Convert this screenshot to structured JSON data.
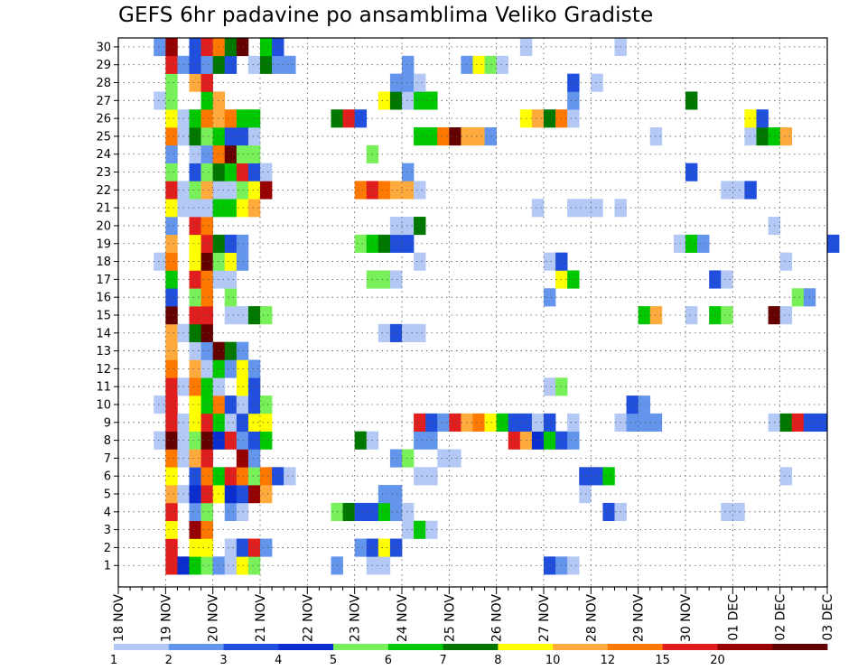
{
  "chart_data": {
    "type": "heatmap",
    "title": "GEFS 6hr padavine po ansamblima Veliko Gradiste",
    "xlabel": "",
    "ylabel": "",
    "grid": true,
    "y_ticks": [
      "1",
      "2",
      "3",
      "4",
      "5",
      "6",
      "7",
      "8",
      "9",
      "10",
      "11",
      "12",
      "13",
      "14",
      "15",
      "16",
      "17",
      "18",
      "19",
      "20",
      "21",
      "22",
      "23",
      "24",
      "25",
      "26",
      "27",
      "28",
      "29",
      "30"
    ],
    "x_ticks": [
      "18 NOV",
      "19 NOV",
      "20 NOV",
      "21 NOV",
      "22 NOV",
      "23 NOV",
      "24 NOV",
      "25 NOV",
      "26 NOV",
      "27 NOV",
      "28 NOV",
      "29 NOV",
      "30 NOV",
      "01 DEC",
      "02 DEC",
      "03 DEC"
    ],
    "x_steps_per_day": 4,
    "x_step_hours": 6,
    "legend": {
      "placement": "bottom",
      "thresholds": [
        "1",
        "2",
        "3",
        "4",
        "5",
        "6",
        "7",
        "8",
        "10",
        "12",
        "15",
        "20"
      ],
      "colors": [
        "#b4c8f5",
        "#6495ed",
        "#1f4fdc",
        "#0a2dd0",
        "#78f05a",
        "#00c800",
        "#007800",
        "#ffff00",
        "#ffaa3c",
        "#ff7800",
        "#e11e1e",
        "#960000",
        "#640000"
      ]
    },
    "levels_note_codes": "cell value = color class 1..13",
    "rows": {
      "1": [
        [
          4,
          11
        ],
        [
          5,
          4
        ],
        [
          6,
          6
        ],
        [
          7,
          5
        ],
        [
          8,
          2
        ],
        [
          9,
          1
        ],
        [
          10,
          8
        ],
        [
          11,
          5
        ],
        [
          18,
          2
        ],
        [
          21,
          1
        ],
        [
          22,
          1
        ],
        [
          36,
          3
        ],
        [
          37,
          2
        ],
        [
          38,
          1
        ]
      ],
      "2": [
        [
          4,
          11
        ],
        [
          6,
          8
        ],
        [
          7,
          8
        ],
        [
          9,
          1
        ],
        [
          10,
          3
        ],
        [
          11,
          11
        ],
        [
          12,
          2
        ],
        [
          20,
          2
        ],
        [
          21,
          3
        ],
        [
          22,
          8
        ],
        [
          23,
          3
        ]
      ],
      "3": [
        [
          4,
          8
        ],
        [
          6,
          12
        ],
        [
          7,
          10
        ],
        [
          24,
          1
        ],
        [
          25,
          6
        ],
        [
          26,
          1
        ]
      ],
      "4": [
        [
          4,
          11
        ],
        [
          6,
          2
        ],
        [
          7,
          5
        ],
        [
          9,
          2
        ],
        [
          10,
          1
        ],
        [
          18,
          5
        ],
        [
          19,
          7
        ],
        [
          20,
          3
        ],
        [
          21,
          3
        ],
        [
          22,
          6
        ],
        [
          23,
          2
        ],
        [
          24,
          1
        ],
        [
          41,
          3
        ],
        [
          42,
          1
        ],
        [
          51,
          1
        ],
        [
          52,
          1
        ]
      ],
      "5": [
        [
          4,
          9
        ],
        [
          5,
          1
        ],
        [
          6,
          4
        ],
        [
          7,
          11
        ],
        [
          8,
          8
        ],
        [
          9,
          4
        ],
        [
          10,
          3
        ],
        [
          11,
          12
        ],
        [
          12,
          9
        ],
        [
          22,
          2
        ],
        [
          23,
          2
        ],
        [
          39,
          1
        ]
      ],
      "6": [
        [
          4,
          8
        ],
        [
          6,
          3
        ],
        [
          7,
          10
        ],
        [
          8,
          6
        ],
        [
          9,
          11
        ],
        [
          10,
          10
        ],
        [
          11,
          5
        ],
        [
          12,
          10
        ],
        [
          13,
          3
        ],
        [
          14,
          1
        ],
        [
          25,
          1
        ],
        [
          26,
          1
        ],
        [
          39,
          3
        ],
        [
          40,
          3
        ],
        [
          41,
          6
        ],
        [
          56,
          1
        ]
      ],
      "7": [
        [
          4,
          10
        ],
        [
          5,
          1
        ],
        [
          6,
          9
        ],
        [
          7,
          11
        ],
        [
          10,
          12
        ],
        [
          11,
          2
        ],
        [
          23,
          2
        ],
        [
          24,
          5
        ],
        [
          27,
          1
        ],
        [
          28,
          1
        ]
      ],
      "8": [
        [
          3,
          1
        ],
        [
          4,
          13
        ],
        [
          5,
          1
        ],
        [
          6,
          5
        ],
        [
          7,
          13
        ],
        [
          8,
          4
        ],
        [
          9,
          11
        ],
        [
          10,
          2
        ],
        [
          11,
          3
        ],
        [
          12,
          6
        ],
        [
          20,
          7
        ],
        [
          21,
          1
        ],
        [
          25,
          2
        ],
        [
          26,
          2
        ],
        [
          33,
          11
        ],
        [
          34,
          9
        ],
        [
          35,
          4
        ],
        [
          36,
          6
        ],
        [
          37,
          3
        ],
        [
          38,
          2
        ]
      ],
      "9": [
        [
          4,
          11
        ],
        [
          5,
          1
        ],
        [
          6,
          8
        ],
        [
          7,
          11
        ],
        [
          8,
          6
        ],
        [
          9,
          1
        ],
        [
          10,
          3
        ],
        [
          11,
          8
        ],
        [
          12,
          8
        ],
        [
          25,
          11
        ],
        [
          26,
          3
        ],
        [
          27,
          2
        ],
        [
          28,
          11
        ],
        [
          29,
          9
        ],
        [
          30,
          10
        ],
        [
          31,
          8
        ],
        [
          32,
          6
        ],
        [
          33,
          3
        ],
        [
          34,
          3
        ],
        [
          35,
          1
        ],
        [
          36,
          3
        ],
        [
          38,
          1
        ],
        [
          42,
          1
        ],
        [
          43,
          2
        ],
        [
          44,
          2
        ],
        [
          45,
          2
        ],
        [
          55,
          1
        ],
        [
          56,
          7
        ],
        [
          57,
          11
        ],
        [
          58,
          3
        ],
        [
          59,
          3
        ]
      ],
      "10": [
        [
          3,
          1
        ],
        [
          4,
          11
        ],
        [
          6,
          8
        ],
        [
          7,
          6
        ],
        [
          8,
          10
        ],
        [
          9,
          3
        ],
        [
          10,
          1
        ],
        [
          11,
          3
        ],
        [
          12,
          5
        ],
        [
          43,
          3
        ],
        [
          44,
          2
        ]
      ],
      "11": [
        [
          4,
          11
        ],
        [
          5,
          1
        ],
        [
          6,
          10
        ],
        [
          7,
          6
        ],
        [
          8,
          1
        ],
        [
          10,
          8
        ],
        [
          11,
          3
        ],
        [
          36,
          1
        ],
        [
          37,
          5
        ]
      ],
      "12": [
        [
          4,
          10
        ],
        [
          6,
          9
        ],
        [
          7,
          1
        ],
        [
          8,
          6
        ],
        [
          9,
          2
        ],
        [
          10,
          8
        ],
        [
          11,
          2
        ]
      ],
      "13": [
        [
          4,
          9
        ],
        [
          6,
          1
        ],
        [
          7,
          2
        ],
        [
          8,
          13
        ],
        [
          9,
          7
        ],
        [
          10,
          2
        ]
      ],
      "14": [
        [
          4,
          9
        ],
        [
          5,
          1
        ],
        [
          6,
          7
        ],
        [
          7,
          13
        ],
        [
          22,
          1
        ],
        [
          23,
          3
        ],
        [
          24,
          1
        ],
        [
          25,
          1
        ]
      ],
      "15": [
        [
          4,
          13
        ],
        [
          6,
          11
        ],
        [
          7,
          11
        ],
        [
          9,
          1
        ],
        [
          10,
          1
        ],
        [
          11,
          7
        ],
        [
          12,
          5
        ],
        [
          44,
          6
        ],
        [
          45,
          9
        ],
        [
          48,
          1
        ],
        [
          50,
          6
        ],
        [
          51,
          5
        ],
        [
          55,
          13
        ],
        [
          56,
          1
        ]
      ],
      "16": [
        [
          4,
          3
        ],
        [
          6,
          5
        ],
        [
          7,
          10
        ],
        [
          9,
          5
        ],
        [
          36,
          2
        ],
        [
          57,
          5
        ],
        [
          58,
          2
        ]
      ],
      "17": [
        [
          4,
          6
        ],
        [
          6,
          11
        ],
        [
          7,
          10
        ],
        [
          8,
          1
        ],
        [
          9,
          1
        ],
        [
          21,
          5
        ],
        [
          22,
          5
        ],
        [
          23,
          1
        ],
        [
          37,
          8
        ],
        [
          38,
          6
        ],
        [
          50,
          3
        ],
        [
          51,
          1
        ]
      ],
      "18": [
        [
          3,
          1
        ],
        [
          4,
          10
        ],
        [
          6,
          8
        ],
        [
          7,
          13
        ],
        [
          8,
          5
        ],
        [
          9,
          8
        ],
        [
          10,
          2
        ],
        [
          25,
          1
        ],
        [
          36,
          1
        ],
        [
          37,
          3
        ],
        [
          56,
          1
        ]
      ],
      "19": [
        [
          4,
          9
        ],
        [
          6,
          8
        ],
        [
          7,
          11
        ],
        [
          8,
          7
        ],
        [
          9,
          3
        ],
        [
          10,
          2
        ],
        [
          20,
          5
        ],
        [
          21,
          6
        ],
        [
          22,
          7
        ],
        [
          23,
          3
        ],
        [
          24,
          3
        ],
        [
          47,
          1
        ],
        [
          48,
          6
        ],
        [
          49,
          2
        ],
        [
          60,
          3
        ]
      ],
      "20": [
        [
          4,
          2
        ],
        [
          6,
          11
        ],
        [
          7,
          10
        ],
        [
          23,
          1
        ],
        [
          24,
          1
        ],
        [
          25,
          7
        ],
        [
          55,
          1
        ]
      ],
      "21": [
        [
          4,
          8
        ],
        [
          5,
          1
        ],
        [
          6,
          1
        ],
        [
          7,
          1
        ],
        [
          8,
          6
        ],
        [
          9,
          6
        ],
        [
          10,
          8
        ],
        [
          11,
          9
        ],
        [
          35,
          1
        ],
        [
          38,
          1
        ],
        [
          39,
          1
        ],
        [
          40,
          1
        ],
        [
          42,
          1
        ]
      ],
      "22": [
        [
          4,
          11
        ],
        [
          5,
          1
        ],
        [
          6,
          5
        ],
        [
          7,
          9
        ],
        [
          8,
          1
        ],
        [
          9,
          1
        ],
        [
          10,
          5
        ],
        [
          11,
          8
        ],
        [
          12,
          12
        ],
        [
          20,
          10
        ],
        [
          21,
          11
        ],
        [
          22,
          10
        ],
        [
          23,
          9
        ],
        [
          24,
          9
        ],
        [
          25,
          1
        ],
        [
          51,
          1
        ],
        [
          52,
          1
        ],
        [
          53,
          3
        ]
      ],
      "23": [
        [
          4,
          5
        ],
        [
          6,
          3
        ],
        [
          7,
          5
        ],
        [
          8,
          7
        ],
        [
          9,
          6
        ],
        [
          10,
          11
        ],
        [
          11,
          3
        ],
        [
          12,
          1
        ],
        [
          24,
          2
        ],
        [
          48,
          3
        ]
      ],
      "24": [
        [
          4,
          2
        ],
        [
          6,
          1
        ],
        [
          7,
          2
        ],
        [
          8,
          10
        ],
        [
          9,
          13
        ],
        [
          10,
          5
        ],
        [
          11,
          5
        ],
        [
          21,
          5
        ]
      ],
      "25": [
        [
          4,
          10
        ],
        [
          5,
          1
        ],
        [
          6,
          7
        ],
        [
          7,
          5
        ],
        [
          8,
          6
        ],
        [
          9,
          3
        ],
        [
          10,
          3
        ],
        [
          11,
          1
        ],
        [
          25,
          6
        ],
        [
          26,
          6
        ],
        [
          27,
          10
        ],
        [
          28,
          13
        ],
        [
          29,
          9
        ],
        [
          30,
          9
        ],
        [
          31,
          2
        ],
        [
          45,
          1
        ],
        [
          53,
          1
        ],
        [
          54,
          7
        ],
        [
          55,
          6
        ],
        [
          56,
          9
        ]
      ],
      "26": [
        [
          4,
          8
        ],
        [
          5,
          1
        ],
        [
          6,
          6
        ],
        [
          7,
          10
        ],
        [
          8,
          9
        ],
        [
          9,
          10
        ],
        [
          10,
          6
        ],
        [
          11,
          6
        ],
        [
          18,
          7
        ],
        [
          19,
          11
        ],
        [
          20,
          3
        ],
        [
          34,
          8
        ],
        [
          35,
          9
        ],
        [
          36,
          7
        ],
        [
          37,
          10
        ],
        [
          38,
          1
        ],
        [
          53,
          8
        ],
        [
          54,
          3
        ]
      ],
      "27": [
        [
          3,
          1
        ],
        [
          4,
          5
        ],
        [
          7,
          6
        ],
        [
          8,
          9
        ],
        [
          22,
          8
        ],
        [
          23,
          7
        ],
        [
          24,
          1
        ],
        [
          25,
          6
        ],
        [
          26,
          6
        ],
        [
          38,
          2
        ],
        [
          48,
          7
        ]
      ],
      "28": [
        [
          4,
          5
        ],
        [
          6,
          9
        ],
        [
          7,
          11
        ],
        [
          23,
          2
        ],
        [
          24,
          2
        ],
        [
          25,
          1
        ],
        [
          38,
          3
        ],
        [
          40,
          1
        ]
      ],
      "29": [
        [
          4,
          11
        ],
        [
          5,
          2
        ],
        [
          6,
          3
        ],
        [
          7,
          2
        ],
        [
          8,
          7
        ],
        [
          9,
          3
        ],
        [
          11,
          1
        ],
        [
          12,
          7
        ],
        [
          13,
          2
        ],
        [
          14,
          2
        ],
        [
          24,
          2
        ],
        [
          29,
          2
        ],
        [
          30,
          8
        ],
        [
          31,
          5
        ],
        [
          32,
          1
        ]
      ],
      "30": [
        [
          3,
          2
        ],
        [
          4,
          12
        ],
        [
          6,
          3
        ],
        [
          7,
          11
        ],
        [
          8,
          10
        ],
        [
          9,
          7
        ],
        [
          10,
          13
        ],
        [
          12,
          6
        ],
        [
          13,
          3
        ],
        [
          34,
          1
        ],
        [
          42,
          1
        ]
      ]
    }
  }
}
